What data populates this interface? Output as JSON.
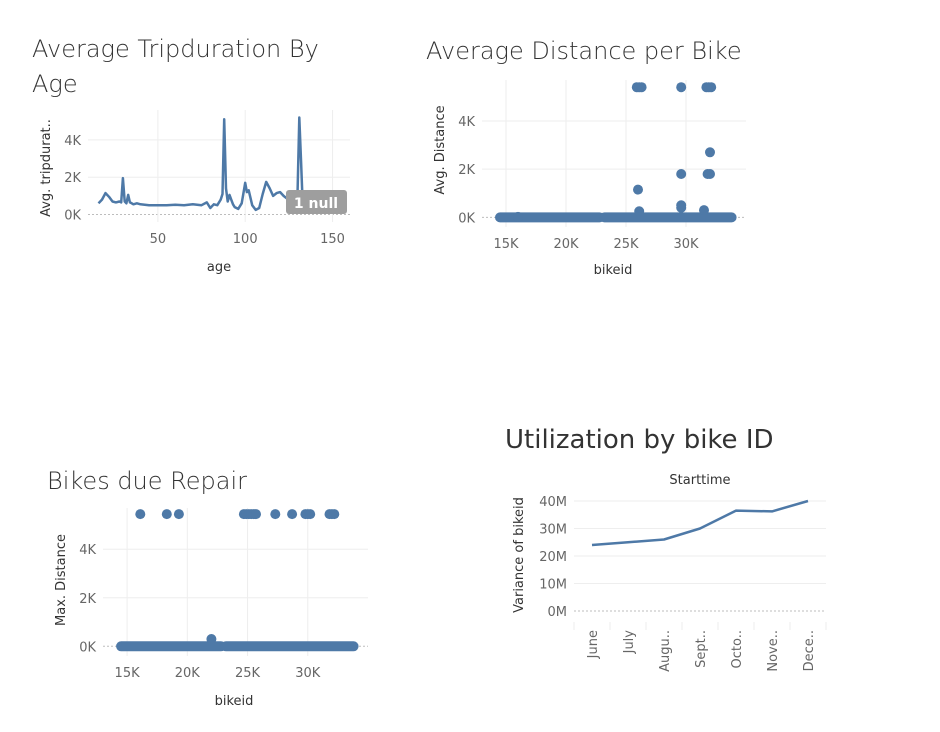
{
  "colors": {
    "mark": "#4e79a7",
    "grid": "#eeeeee",
    "null_badge": "#9e9e9e"
  },
  "chart_data": [
    {
      "id": "tripduration",
      "type": "line",
      "title": "Average Tripduration By Age",
      "xlabel": "age",
      "ylabel": "Avg. tripdurat..",
      "xlim": [
        10,
        160
      ],
      "ylim": [
        -400,
        5600
      ],
      "xticks": [
        50,
        100,
        150
      ],
      "xtick_labels": [
        "50",
        "100",
        "150"
      ],
      "yticks": [
        0,
        2000,
        4000
      ],
      "ytick_labels": [
        "0K",
        "2K",
        "4K"
      ],
      "null_indicator": "1 null",
      "series": [
        {
          "x": [
            16,
            18,
            20,
            22,
            24,
            26,
            28,
            29,
            30,
            31,
            32,
            33,
            34,
            35,
            36,
            38,
            40,
            45,
            50,
            55,
            60,
            65,
            70,
            75,
            78,
            80,
            82,
            84,
            86,
            87,
            88,
            89,
            90,
            91,
            92,
            93,
            94,
            96,
            98,
            100,
            101,
            102,
            104,
            106,
            108,
            110,
            112,
            114,
            116,
            118,
            120,
            122,
            124,
            126,
            128,
            130,
            131,
            132,
            133,
            134,
            136
          ],
          "y": [
            600,
            800,
            1150,
            950,
            700,
            650,
            700,
            650,
            1950,
            700,
            600,
            1050,
            650,
            600,
            550,
            600,
            550,
            500,
            500,
            500,
            520,
            500,
            550,
            500,
            650,
            350,
            550,
            500,
            800,
            1100,
            5100,
            1400,
            700,
            1050,
            800,
            550,
            400,
            300,
            600,
            1700,
            1200,
            1300,
            500,
            250,
            350,
            1100,
            1750,
            1400,
            1000,
            1150,
            1200,
            1000,
            850,
            800,
            950,
            1300,
            5200,
            2800,
            400,
            600,
            500
          ]
        }
      ]
    },
    {
      "id": "distance",
      "type": "scatter",
      "title": "Average Distance per Bike",
      "xlabel": "bikeid",
      "ylabel": "Avg. Distance",
      "xlim": [
        13000,
        35000
      ],
      "ylim": [
        -400,
        5700
      ],
      "xticks": [
        15000,
        20000,
        25000,
        30000
      ],
      "xtick_labels": [
        "15K",
        "20K",
        "25K",
        "30K"
      ],
      "yticks": [
        0,
        2000,
        4000
      ],
      "ytick_labels": [
        "0K",
        "2K",
        "4K"
      ],
      "dense_ranges": [
        [
          14500,
          22800,
          0
        ],
        [
          23200,
          33800,
          0
        ]
      ],
      "points": [
        [
          16000,
          20
        ],
        [
          25900,
          5400
        ],
        [
          26100,
          5400
        ],
        [
          26300,
          5400
        ],
        [
          29600,
          5400
        ],
        [
          31700,
          5400
        ],
        [
          31900,
          5400
        ],
        [
          32100,
          5400
        ],
        [
          26000,
          1150
        ],
        [
          29600,
          1800
        ],
        [
          29600,
          500
        ],
        [
          29600,
          400
        ],
        [
          31500,
          300
        ],
        [
          31800,
          1800
        ],
        [
          32000,
          1800
        ],
        [
          32000,
          2700
        ],
        [
          26100,
          250
        ]
      ]
    },
    {
      "id": "repair",
      "type": "scatter",
      "title": "Bikes due Repair",
      "xlabel": "bikeid",
      "ylabel": "Max. Distance",
      "xlim": [
        13000,
        35000
      ],
      "ylim": [
        -400,
        5700
      ],
      "xticks": [
        15000,
        20000,
        25000,
        30000
      ],
      "xtick_labels": [
        "15K",
        "20K",
        "25K",
        "30K"
      ],
      "yticks": [
        0,
        2000,
        4000
      ],
      "ytick_labels": [
        "0K",
        "2K",
        "4K"
      ],
      "dense_ranges": [
        [
          14500,
          22800,
          0
        ],
        [
          23200,
          33800,
          0
        ]
      ],
      "points": [
        [
          16100,
          5450
        ],
        [
          18300,
          5450
        ],
        [
          19300,
          5450
        ],
        [
          22000,
          300
        ],
        [
          24700,
          5450
        ],
        [
          24900,
          5450
        ],
        [
          25100,
          5450
        ],
        [
          25300,
          5450
        ],
        [
          25500,
          5450
        ],
        [
          25700,
          5450
        ],
        [
          27300,
          5450
        ],
        [
          28700,
          5450
        ],
        [
          29800,
          5450
        ],
        [
          30000,
          5450
        ],
        [
          30200,
          5450
        ],
        [
          31800,
          5450
        ],
        [
          32000,
          5450
        ],
        [
          32200,
          5450
        ]
      ]
    },
    {
      "id": "utilization",
      "type": "line",
      "title": "Utilization by bike ID",
      "header": "Starttime",
      "ylabel": "Variance of bikeid",
      "ylim": [
        -4000000,
        44000000
      ],
      "yticks": [
        0,
        10000000,
        20000000,
        30000000,
        40000000
      ],
      "ytick_labels": [
        "0M",
        "10M",
        "20M",
        "30M",
        "40M"
      ],
      "categories": [
        "June",
        "July",
        "Augu..",
        "Sept..",
        "Octo..",
        "Nove..",
        "Dece.."
      ],
      "series": [
        {
          "values": [
            24000000,
            25000000,
            26000000,
            30000000,
            36500000,
            36200000,
            40000000
          ]
        }
      ]
    }
  ]
}
